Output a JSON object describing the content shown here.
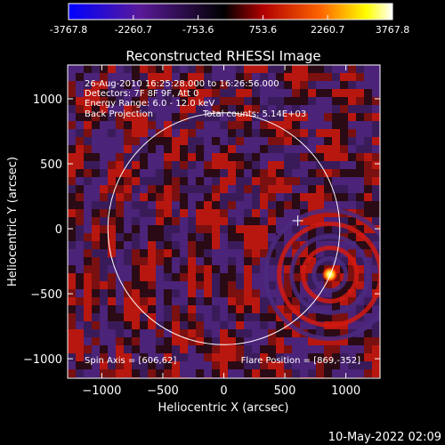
{
  "colorbar": {
    "ticks": [
      "-3767.8",
      "-2260.7",
      "-753.6",
      "753.6",
      "2260.7",
      "3767.8"
    ],
    "range": [
      -3767.8,
      3767.8
    ],
    "colors": [
      "#0000ff",
      "#5a1a9a",
      "#000000",
      "#b00000",
      "#ff6600",
      "#ffff00",
      "#ffffff"
    ]
  },
  "chart_data": {
    "type": "heatmap",
    "title": "Reconstructed RHESSI Image",
    "xlabel": "Heliocentric X (arcsec)",
    "ylabel": "Heliocentric Y (arcsec)",
    "xlim": [
      -1280,
      1280
    ],
    "ylim": [
      -1150,
      1260
    ],
    "xticks": [
      -1000,
      -500,
      0,
      500,
      1000
    ],
    "yticks": [
      -1000,
      -500,
      0,
      500,
      1000
    ],
    "solar_radius": 950,
    "annotations": [
      "26-Aug-2010 16:25:28.000 to 16:26:56.000",
      "Detectors: 7F 8F 9F, Att 0",
      "Energy Range: 6.0 - 12.0 keV",
      "Back Projection",
      "Total counts: 5.14E+03"
    ],
    "spin_axis_label": "Spin Axis = [606,62]",
    "spin_axis": [
      606,
      62
    ],
    "flare_position_label": "Flare Position = [869,-352]",
    "flare_position": [
      869,
      -352
    ]
  },
  "footer": {
    "date": "10-May-2022 02:09"
  }
}
